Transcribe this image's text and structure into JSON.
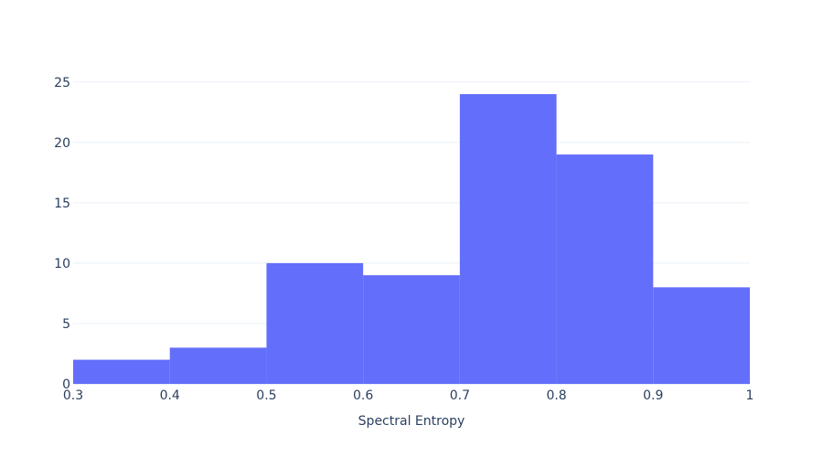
{
  "chart_data": {
    "type": "bar",
    "subtype": "histogram",
    "bin_edges": [
      0.3,
      0.4,
      0.5,
      0.6,
      0.7,
      0.8,
      0.9,
      1.0
    ],
    "values": [
      2,
      3,
      10,
      9,
      24,
      19,
      8
    ],
    "xlabel": "Spectral Entropy",
    "ylabel": "",
    "title": "",
    "xlim": [
      0.3,
      1.0
    ],
    "ylim": [
      0,
      26.5
    ],
    "x_ticks": [
      0.3,
      0.4,
      0.5,
      0.6,
      0.7,
      0.8,
      0.9,
      1.0
    ],
    "x_tick_labels": [
      "0.3",
      "0.4",
      "0.5",
      "0.6",
      "0.7",
      "0.8",
      "0.9",
      "1"
    ],
    "y_ticks": [
      0,
      5,
      10,
      15,
      20,
      25
    ],
    "y_tick_labels": [
      "0",
      "5",
      "10",
      "15",
      "20",
      "25"
    ],
    "bar_color": "#636efa",
    "grid": true,
    "legend": "none"
  }
}
